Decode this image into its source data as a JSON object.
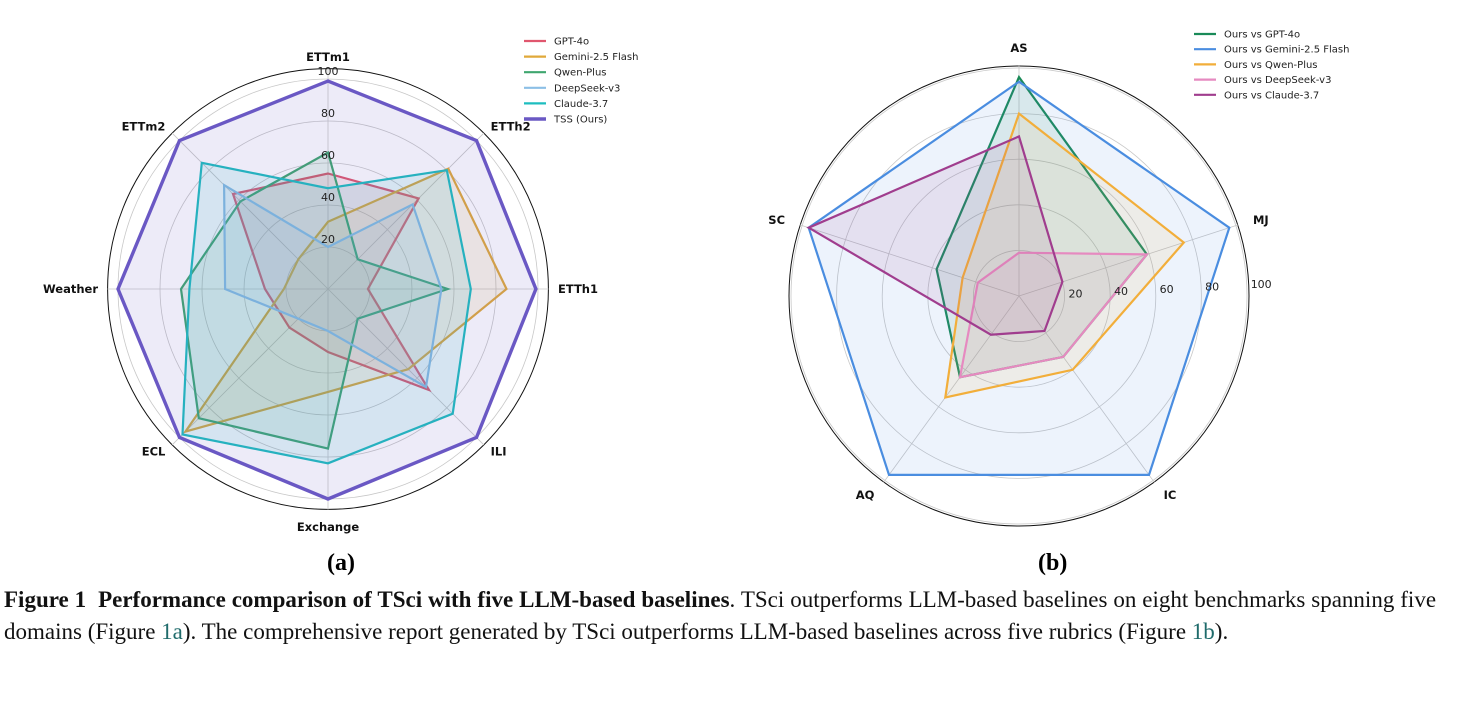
{
  "chart_data": [
    {
      "type": "radar",
      "panel": "(a)",
      "axes": [
        "ETTm1",
        "ETTh2",
        "ETTh1",
        "ILI",
        "Exchange",
        "ECL",
        "Weather",
        "ETTm2"
      ],
      "rticks": [
        "20",
        "40",
        "60",
        "80",
        "100"
      ],
      "rlim": [
        0,
        104
      ],
      "legend_position": "top-right",
      "series": [
        {
          "name": "GPT-4o",
          "color": "#e0566e",
          "values": [
            55,
            61,
            19,
            68,
            30,
            26,
            30,
            64
          ]
        },
        {
          "name": "Gemini-2.5 Flash",
          "color": "#e0a93a",
          "values": [
            32,
            81,
            85,
            54,
            49,
            96,
            21,
            20
          ]
        },
        {
          "name": "Qwen-Plus",
          "color": "#3fa66f",
          "values": [
            65,
            20,
            57,
            20,
            76,
            87,
            70,
            59
          ]
        },
        {
          "name": "DeepSeek-v3",
          "color": "#8cbfe6",
          "values": [
            20,
            57,
            54,
            66,
            20,
            20,
            49,
            70
          ]
        },
        {
          "name": "Claude-3.7",
          "color": "#1dbdbf",
          "values": [
            48,
            80,
            68,
            84,
            83,
            98,
            66,
            85
          ]
        },
        {
          "name": "TSS (Ours)",
          "color": "#6a58c4",
          "values": [
            99,
            100,
            99,
            100,
            100,
            100,
            100,
            100
          ]
        }
      ]
    },
    {
      "type": "radar",
      "panel": "(b)",
      "axes": [
        "AS",
        "MJ",
        "IC",
        "AQ",
        "SC"
      ],
      "rticks": [
        "20",
        "40",
        "60",
        "80",
        "100"
      ],
      "rlim": [
        0,
        100
      ],
      "legend_position": "top-right",
      "series": [
        {
          "name": "Ours vs GPT-4o",
          "color": "#1a8a58",
          "values": [
            96,
            59,
            33,
            44,
            38
          ]
        },
        {
          "name": "Ours vs Gemini-2.5 Flash",
          "color": "#4a8de0",
          "values": [
            94,
            97,
            97,
            97,
            97
          ]
        },
        {
          "name": "Ours vs Qwen-Plus",
          "color": "#f2ae3a",
          "values": [
            80,
            76,
            40,
            55,
            26
          ]
        },
        {
          "name": "Ours vs DeepSeek-v3",
          "color": "#e68ac0",
          "values": [
            19,
            59,
            33,
            44,
            19
          ]
        },
        {
          "name": "Ours vs Claude-3.7",
          "color": "#a03d8e",
          "values": [
            70,
            20,
            19,
            21,
            97
          ]
        }
      ]
    }
  ],
  "caption": {
    "label": "Figure 1",
    "title": "Performance comparison of TSci with five LLM-based baselines",
    "text1": ". TSci outperforms LLM-based baselines on eight benchmarks spanning five domains (Figure ",
    "ref1": "1a",
    "text2": ").  The comprehensive report generated by TSci outperforms LLM-based baselines across five rubrics (Figure ",
    "ref2": "1b",
    "text3": ")."
  }
}
